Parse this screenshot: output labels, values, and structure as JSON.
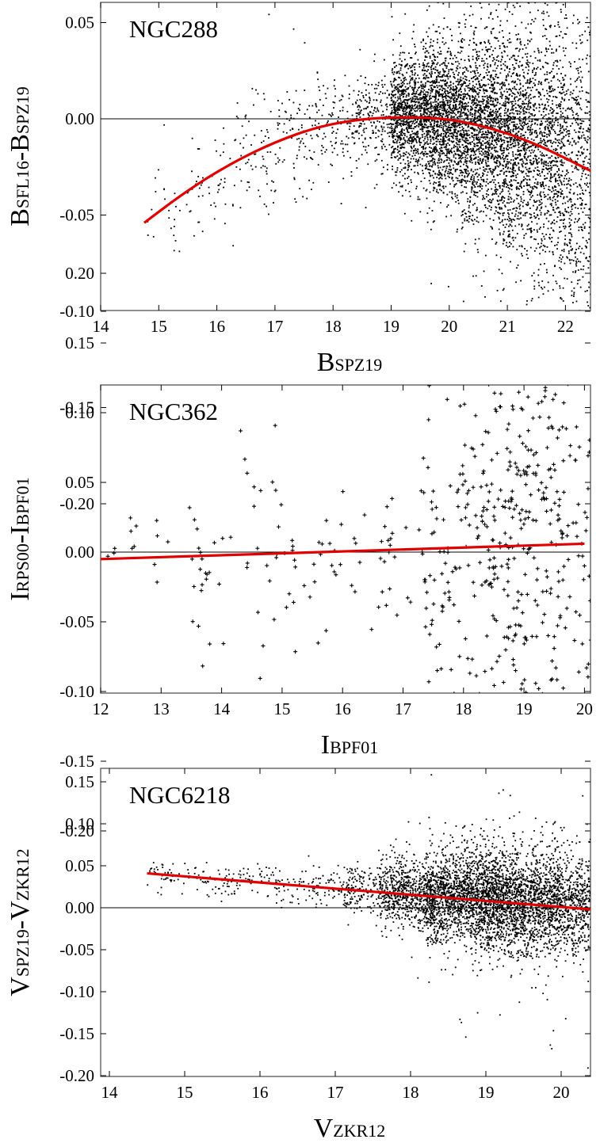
{
  "figure": {
    "colors": {
      "points": "#000000",
      "fit": "#e00000",
      "zero_line": "#000000",
      "frame": "#555555"
    }
  },
  "chart_data": [
    {
      "type": "scatter",
      "title": "NGC288",
      "xlabel": "BSPZ19",
      "ylabel": "BSFL16-BSPZ19",
      "xlabel_parts": {
        "cap": "B",
        "sub": "SPZ19"
      },
      "ylabel_parts": [
        {
          "cap": "B",
          "sub": "SFL16"
        },
        {
          "cap": "-B",
          "sub": "SPZ19"
        }
      ],
      "xlim": [
        14,
        22.6
      ],
      "ylim": [
        -0.2,
        0.12
      ],
      "xticks": [
        14,
        15,
        16,
        17,
        18,
        19,
        20,
        21,
        22
      ],
      "xtick_labels": [
        "14",
        "15",
        "16",
        "17",
        "18",
        "19",
        "20",
        "21",
        "22"
      ],
      "yticks": [
        -0.2,
        -0.15,
        -0.1,
        -0.05,
        0,
        0.05,
        0.1
      ],
      "ytick_labels": [
        "-0.20",
        "-0.15",
        "-0.10",
        "-0.05",
        "0.00",
        "0.05",
        "0.10"
      ],
      "grid": false,
      "zero_line": true,
      "marker": "dot",
      "fit": {
        "kind": "polynomial",
        "x": [
          14.75,
          15.5,
          16.25,
          17.0,
          17.75,
          18.5,
          19.25,
          20.0,
          20.75,
          21.5,
          22.5
        ],
        "y": [
          -0.054,
          -0.037,
          -0.023,
          -0.012,
          -0.004,
          0.0,
          0.001,
          0.0,
          -0.005,
          -0.013,
          -0.028
        ]
      },
      "density_bins": [
        {
          "x": [
            14.8,
            15.5
          ],
          "y_center": -0.045,
          "spread": 0.015,
          "count": 25
        },
        {
          "x": [
            15.5,
            16.3
          ],
          "y_center": -0.032,
          "spread": 0.015,
          "count": 50
        },
        {
          "x": [
            16.3,
            17.0
          ],
          "y_center": -0.02,
          "spread": 0.014,
          "count": 70
        },
        {
          "x": [
            17.0,
            17.7
          ],
          "y_center": -0.01,
          "spread": 0.013,
          "count": 90
        },
        {
          "x": [
            17.7,
            18.4
          ],
          "y_center": -0.004,
          "spread": 0.012,
          "count": 120
        },
        {
          "x": [
            18.4,
            19.0
          ],
          "y_center": 0.0,
          "spread": 0.012,
          "count": 200
        },
        {
          "x": [
            19.0,
            19.6
          ],
          "y_center": 0.001,
          "spread": 0.016,
          "count": 1000
        },
        {
          "x": [
            19.6,
            20.2
          ],
          "y_center": 0.0,
          "spread": 0.019,
          "count": 1200
        },
        {
          "x": [
            20.2,
            20.8
          ],
          "y_center": -0.004,
          "spread": 0.023,
          "count": 1200
        },
        {
          "x": [
            20.8,
            21.4
          ],
          "y_center": -0.01,
          "spread": 0.028,
          "count": 1100
        },
        {
          "x": [
            21.4,
            22.0
          ],
          "y_center": -0.016,
          "spread": 0.034,
          "count": 900
        },
        {
          "x": [
            22.0,
            22.55
          ],
          "y_center": -0.024,
          "spread": 0.04,
          "count": 600
        }
      ]
    },
    {
      "type": "scatter",
      "title": "NGC362",
      "xlabel": "IBPF01",
      "ylabel": "IRPS00-IBPF01",
      "xlabel_parts": {
        "cap": "I",
        "sub": "BPF01"
      },
      "ylabel_parts": [
        {
          "cap": "I",
          "sub": "RPS00"
        },
        {
          "cap": "-I",
          "sub": "BPF01"
        }
      ],
      "xlim": [
        12,
        20.2
      ],
      "ylim": [
        -0.2,
        0.24
      ],
      "xticks": [
        12,
        13,
        14,
        15,
        16,
        17,
        18,
        19,
        20
      ],
      "xtick_labels": [
        "12",
        "13",
        "14",
        "15",
        "16",
        "17",
        "18",
        "19",
        "20"
      ],
      "yticks": [
        -0.2,
        -0.15,
        -0.1,
        -0.05,
        0,
        0.05,
        0.1,
        0.15,
        0.2
      ],
      "ytick_labels": [
        "-0.20",
        "-0.15",
        "-0.10",
        "-0.05",
        "0.00",
        "0.05",
        "0.10",
        "0.15",
        "0.20"
      ],
      "grid": false,
      "zero_line": true,
      "marker": "plus",
      "fit": {
        "kind": "linear",
        "x": [
          12.0,
          20.0
        ],
        "y": [
          -0.005,
          0.006
        ]
      },
      "density_bins": [
        {
          "x": [
            12.0,
            13.5
          ],
          "y_center": 0.005,
          "spread": 0.015,
          "count": 14
        },
        {
          "x": [
            13.5,
            15.0
          ],
          "y_center": -0.01,
          "spread": 0.04,
          "count": 45
        },
        {
          "x": [
            15.0,
            16.5
          ],
          "y_center": -0.005,
          "spread": 0.03,
          "count": 35
        },
        {
          "x": [
            16.5,
            17.3
          ],
          "y_center": 0.0,
          "spread": 0.03,
          "count": 22
        },
        {
          "x": [
            17.3,
            18.0
          ],
          "y_center": 0.0,
          "spread": 0.06,
          "count": 70
        },
        {
          "x": [
            18.0,
            18.6
          ],
          "y_center": 0.005,
          "spread": 0.07,
          "count": 110
        },
        {
          "x": [
            18.6,
            19.2
          ],
          "y_center": 0.01,
          "spread": 0.08,
          "count": 140
        },
        {
          "x": [
            19.2,
            19.7
          ],
          "y_center": 0.02,
          "spread": 0.085,
          "count": 110
        },
        {
          "x": [
            19.7,
            20.15
          ],
          "y_center": 0.0,
          "spread": 0.09,
          "count": 60
        }
      ]
    },
    {
      "type": "scatter",
      "title": "NGC6218",
      "xlabel": "VZKR12",
      "ylabel": "VSPZ19-VZKR12",
      "xlabel_parts": {
        "cap": "V",
        "sub": "ZKR12"
      },
      "ylabel_parts": [
        {
          "cap": "V",
          "sub": "SPZ19"
        },
        {
          "cap": "-V",
          "sub": "ZKR12"
        }
      ],
      "xlim": [
        14,
        20.4
      ],
      "ylim": [
        -0.2,
        0.17
      ],
      "xticks": [
        14,
        15,
        16,
        17,
        18,
        19,
        20
      ],
      "xtick_labels": [
        "14",
        "15",
        "16",
        "17",
        "18",
        "19",
        "20"
      ],
      "yticks": [
        -0.2,
        -0.15,
        -0.1,
        -0.05,
        0,
        0.05,
        0.1,
        0.15
      ],
      "ytick_labels": [
        "-0.20",
        "-0.15",
        "-0.10",
        "-0.05",
        "0.00",
        "0.05",
        "0.10",
        "0.15"
      ],
      "grid": false,
      "zero_line": true,
      "marker": "dot",
      "fit": {
        "kind": "linear",
        "x": [
          14.5,
          20.4
        ],
        "y": [
          0.041,
          -0.002
        ]
      },
      "density_bins": [
        {
          "x": [
            14.5,
            15.3
          ],
          "y_center": 0.038,
          "spread": 0.008,
          "count": 60
        },
        {
          "x": [
            15.3,
            16.2
          ],
          "y_center": 0.033,
          "spread": 0.009,
          "count": 90
        },
        {
          "x": [
            16.2,
            17.1
          ],
          "y_center": 0.027,
          "spread": 0.011,
          "count": 110
        },
        {
          "x": [
            17.1,
            17.6
          ],
          "y_center": 0.022,
          "spread": 0.014,
          "count": 180
        },
        {
          "x": [
            17.6,
            18.2
          ],
          "y_center": 0.018,
          "spread": 0.02,
          "count": 600
        },
        {
          "x": [
            18.2,
            18.8
          ],
          "y_center": 0.014,
          "spread": 0.026,
          "count": 1100
        },
        {
          "x": [
            18.8,
            19.4
          ],
          "y_center": 0.01,
          "spread": 0.03,
          "count": 1300
        },
        {
          "x": [
            19.4,
            20.0
          ],
          "y_center": 0.006,
          "spread": 0.03,
          "count": 1100
        },
        {
          "x": [
            20.0,
            20.4
          ],
          "y_center": 0.003,
          "spread": 0.03,
          "count": 500
        }
      ]
    }
  ]
}
